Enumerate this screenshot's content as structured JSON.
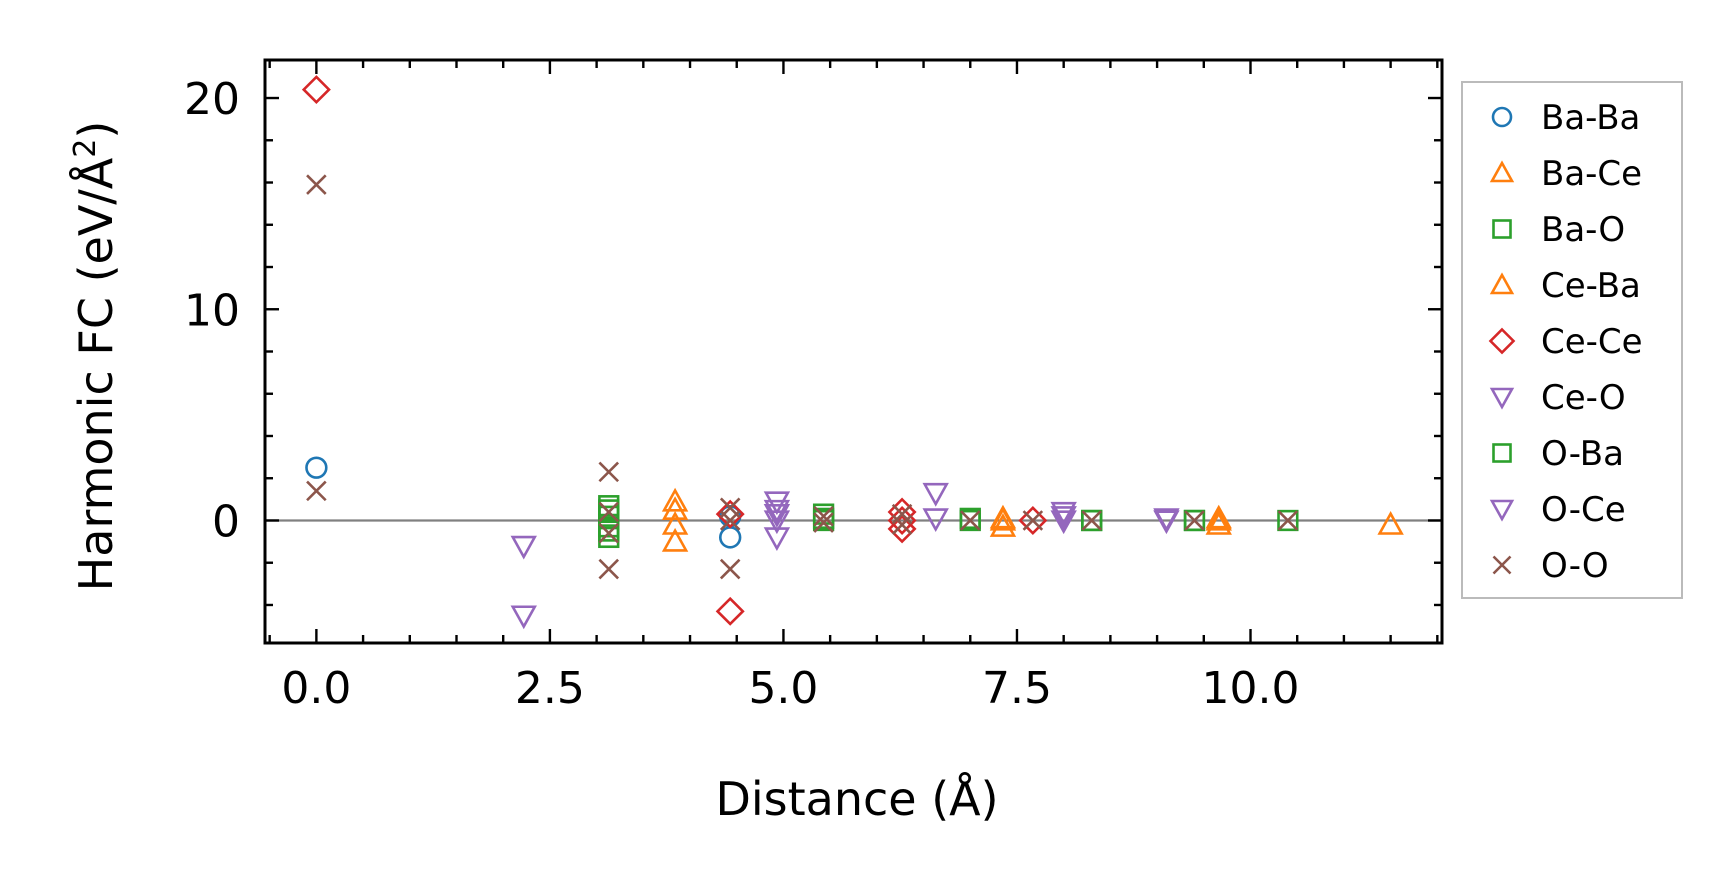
{
  "chart_data": {
    "type": "scatter",
    "xlabel": "Distance (Å)",
    "ylabel_main": "Harmonic FC (eV/Å",
    "ylabel_sup": "2",
    "ylabel_close": ")",
    "xlim": [
      -0.55,
      12.05
    ],
    "ylim": [
      -5.8,
      21.8
    ],
    "x_ticks": [
      0.0,
      2.5,
      5.0,
      7.5,
      10.0
    ],
    "x_tick_labels": [
      "0.0",
      "2.5",
      "5.0",
      "7.5",
      "10.0"
    ],
    "y_ticks": [
      0,
      10,
      20
    ],
    "y_tick_labels": [
      "0",
      "10",
      "20"
    ],
    "zero_line": true,
    "grid": false,
    "legend_position": "right, outside",
    "series": [
      {
        "name": "Ba-Ba",
        "marker": "circle",
        "color": "#1f77b4",
        "points": [
          [
            0.0,
            2.5
          ],
          [
            4.43,
            -0.8
          ],
          [
            4.43,
            0.2
          ]
        ]
      },
      {
        "name": "Ba-Ce",
        "marker": "triangle-up",
        "color": "#ff7f0e",
        "points": [
          [
            3.84,
            0.9
          ],
          [
            3.84,
            -0.2
          ],
          [
            3.84,
            -1.0
          ],
          [
            7.35,
            0.1
          ],
          [
            7.35,
            -0.3
          ],
          [
            9.66,
            0.0
          ],
          [
            9.66,
            -0.2
          ],
          [
            11.5,
            -0.2
          ]
        ]
      },
      {
        "name": "Ba-O",
        "marker": "square",
        "color": "#2ca02c",
        "points": [
          [
            3.13,
            0.7
          ],
          [
            3.13,
            0.2
          ],
          [
            3.13,
            -0.3
          ],
          [
            3.13,
            -0.8
          ],
          [
            5.43,
            0.3
          ],
          [
            5.43,
            0.0
          ],
          [
            7.0,
            0.0
          ],
          [
            8.3,
            0.0
          ],
          [
            9.4,
            0.0
          ],
          [
            10.4,
            0.0
          ]
        ]
      },
      {
        "name": "Ce-Ba",
        "marker": "triangle-up",
        "color": "#ff7f0e",
        "points": [
          [
            3.84,
            0.5
          ],
          [
            7.35,
            0.0
          ],
          [
            9.66,
            0.1
          ]
        ]
      },
      {
        "name": "Ce-Ce",
        "marker": "diamond",
        "color": "#d62728",
        "points": [
          [
            0.0,
            20.4
          ],
          [
            4.43,
            -4.3
          ],
          [
            4.43,
            0.3
          ],
          [
            6.27,
            0.4
          ],
          [
            6.27,
            0.0
          ],
          [
            6.27,
            -0.4
          ],
          [
            7.67,
            0.0
          ]
        ]
      },
      {
        "name": "Ce-O",
        "marker": "triangle-down",
        "color": "#9467bd",
        "points": [
          [
            2.22,
            -1.2
          ],
          [
            2.22,
            -4.5
          ],
          [
            4.93,
            0.9
          ],
          [
            4.93,
            0.3
          ],
          [
            4.93,
            -0.8
          ],
          [
            6.63,
            1.3
          ],
          [
            6.63,
            0.1
          ],
          [
            8.0,
            0.4
          ],
          [
            8.0,
            0.0
          ],
          [
            9.1,
            0.1
          ]
        ]
      },
      {
        "name": "O-Ba",
        "marker": "square",
        "color": "#2ca02c",
        "points": [
          [
            3.13,
            0.5
          ],
          [
            3.13,
            -0.5
          ],
          [
            5.43,
            0.1
          ],
          [
            7.0,
            0.1
          ],
          [
            8.3,
            0.0
          ],
          [
            9.4,
            0.0
          ]
        ]
      },
      {
        "name": "O-Ce",
        "marker": "triangle-down",
        "color": "#9467bd",
        "points": [
          [
            4.93,
            0.5
          ],
          [
            4.93,
            0.0
          ],
          [
            8.0,
            0.2
          ],
          [
            9.1,
            0.0
          ]
        ]
      },
      {
        "name": "O-O",
        "marker": "x",
        "color": "#8c564b",
        "points": [
          [
            0.0,
            15.9
          ],
          [
            0.0,
            1.4
          ],
          [
            3.13,
            2.3
          ],
          [
            3.13,
            0.4
          ],
          [
            3.13,
            -0.6
          ],
          [
            3.13,
            -2.3
          ],
          [
            4.43,
            0.6
          ],
          [
            4.43,
            0.0
          ],
          [
            4.43,
            -2.3
          ],
          [
            5.43,
            0.2
          ],
          [
            5.43,
            -0.1
          ],
          [
            6.27,
            0.3
          ],
          [
            6.27,
            -0.2
          ],
          [
            7.0,
            0.0
          ],
          [
            7.67,
            0.0
          ],
          [
            8.3,
            0.0
          ],
          [
            9.4,
            0.0
          ],
          [
            10.4,
            0.0
          ]
        ]
      }
    ]
  }
}
